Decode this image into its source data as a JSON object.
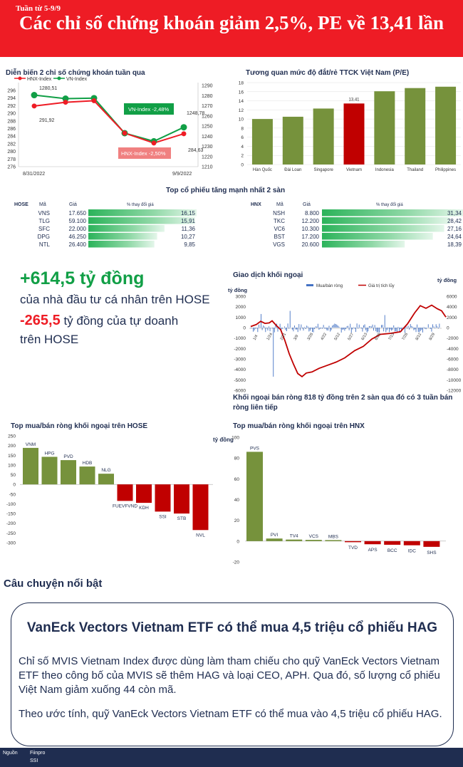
{
  "header": {
    "week": "Tuần từ 5-9/9",
    "title": "Các chỉ số chứng khoán giảm 2,5%, PE về 13,41 lần"
  },
  "colors": {
    "red": "#ee1c25",
    "green": "#119f46",
    "olive": "#76923c",
    "navy": "#1f2d50"
  },
  "index_chart": {
    "title": "Diễn biến 2 chỉ số chứng khoán tuần qua",
    "legend_hnx": "HNX-Index",
    "legend_vn": "VN-Index",
    "left_ticks": [
      "296",
      "294",
      "292",
      "290",
      "288",
      "286",
      "284",
      "282",
      "280",
      "278",
      "276"
    ],
    "right_ticks": [
      "1290",
      "1280",
      "1270",
      "1260",
      "1250",
      "1240",
      "1230",
      "1220",
      "1210"
    ],
    "date_start": "8/31/2022",
    "date_end": "9/9/2022",
    "hnx_values": [
      291.92,
      292.9,
      293.3,
      284.8,
      282.2,
      284.63
    ],
    "vn_values": [
      1280.51,
      1277.0,
      1277.5,
      1243.0,
      1235.0,
      1248.78
    ],
    "label_hnx_start": "291,92",
    "label_vn_start": "1280,51",
    "label_vn_end": "1248,78",
    "label_hnx_end": "284,63",
    "box_vn": "VN-Index -2,48%",
    "box_hnx": "HNX-Index -2,50%"
  },
  "pe_chart": {
    "title": "Tương quan mức độ đắt/rẻ TTCK Việt Nam (P/E)",
    "categories": [
      "Hàn Quốc",
      "Đài Loan",
      "Singapore",
      "Vietnam",
      "Indonesia",
      "Thailand",
      "Philippines"
    ],
    "values": [
      10.0,
      10.5,
      12.3,
      13.41,
      16.1,
      16.8,
      17.1
    ],
    "ylim": [
      0,
      18
    ],
    "ticks": [
      "18",
      "16",
      "14",
      "12",
      "10",
      "8",
      "6",
      "4",
      "2",
      "0"
    ],
    "vn_label": "13,41"
  },
  "top_gainers": {
    "title": "Top cổ phiếu tăng mạnh nhất 2 sàn",
    "col_code": "Mã",
    "col_price": "Giá",
    "col_change": "% thay đổi giá",
    "hose": {
      "exchange": "HOSE",
      "rows": [
        {
          "code": "VNS",
          "price": "17.650",
          "change": "16,15",
          "value": 16.15
        },
        {
          "code": "TLG",
          "price": "59.100",
          "change": "15,91",
          "value": 15.91
        },
        {
          "code": "SFC",
          "price": "22.000",
          "change": "11,36",
          "value": 11.36
        },
        {
          "code": "DPG",
          "price": "46.250",
          "change": "10,27",
          "value": 10.27
        },
        {
          "code": "NTL",
          "price": "26.400",
          "change": "9,85",
          "value": 9.85
        }
      ]
    },
    "hnx": {
      "exchange": "HNX",
      "rows": [
        {
          "code": "NSH",
          "price": "8.800",
          "change": "31,34",
          "value": 31.34
        },
        {
          "code": "TKC",
          "price": "12.200",
          "change": "28,42",
          "value": 28.42
        },
        {
          "code": "VC6",
          "price": "10.300",
          "change": "27,16",
          "value": 27.16
        },
        {
          "code": "BST",
          "price": "17.200",
          "change": "24,64",
          "value": 24.64
        },
        {
          "code": "VGS",
          "price": "20.600",
          "change": "18,39",
          "value": 18.39
        }
      ]
    }
  },
  "highlights": {
    "big1": "+614,5 tỷ đồng",
    "desc1": "của nhà đầu tư cá nhân trên HOSE",
    "big2": "-265,5",
    "desc2a": " tỷ đồng của tự doanh",
    "desc2b": "trên HOSE"
  },
  "foreign_chart": {
    "title": "Giao dịch khối ngoại",
    "unit_left": "tỷ đồng",
    "unit_right": "tỷ đồng",
    "legend_bar": "Mua/bán ròng",
    "legend_line": "Giá trị tích lũy",
    "left_ticks": [
      "3000",
      "2000",
      "1000",
      "0",
      "-1000",
      "-2000",
      "-3000",
      "-4000",
      "-5000",
      "-6000"
    ],
    "right_ticks": [
      "6000",
      "4000",
      "2000",
      "0",
      "-2000",
      "-4000",
      "-6000",
      "-8000",
      "-10000",
      "-12000"
    ],
    "date_labels": [
      "1/4",
      "1/24",
      "2/21",
      "3/9",
      "3/28",
      "4/22",
      "5/12",
      "5/27",
      "6/13",
      "6/28",
      "7/13",
      "7/28",
      "8/12",
      "8/29"
    ],
    "caption": "Khối ngoại bán ròng 818 tỷ đồng trên 2 sàn qua đó có 3 tuần bán ròng liên tiếp"
  },
  "hose_foreign": {
    "title": "Top mua/bán ròng khối ngoại trên HOSE",
    "unit": "tỷ đồng",
    "categories": [
      "VNM",
      "HPG",
      "PVD",
      "HDB",
      "NLG",
      "FUEVFVND",
      "KDH",
      "SSI",
      "STB",
      "NVL"
    ],
    "values": [
      188,
      142,
      125,
      92,
      55,
      -85,
      -95,
      -140,
      -150,
      -235
    ],
    "ticks": [
      "250",
      "200",
      "150",
      "100",
      "50",
      "0",
      "-50",
      "-100",
      "-150",
      "-200",
      "-250",
      "-300"
    ],
    "ylim": [
      -300,
      250
    ]
  },
  "hnx_foreign": {
    "title": "Top mua/bán ròng khối ngoại trên HNX",
    "categories": [
      "PVS",
      "PVI",
      "TV4",
      "VCS",
      "MBS",
      "TVD",
      "APS",
      "BCC",
      "IDC",
      "SHS"
    ],
    "values": [
      86,
      2.5,
      1.5,
      1.2,
      1.0,
      -0.8,
      -3.0,
      -3.5,
      -4.0,
      -5.5
    ],
    "ticks": [
      "100",
      "80",
      "60",
      "40",
      "20",
      "0",
      "-20"
    ],
    "ylim": [
      -20,
      100
    ]
  },
  "story": {
    "heading": "Câu chuyện nổi bật",
    "title": "VanEck Vectors Vietnam ETF có thể mua 4,5 triệu cổ phiếu HAG",
    "p1": "Chỉ số MVIS Vietnam Index được dùng làm tham chiếu cho quỹ VanEck Vectors Vietnam ETF theo công bố của MVIS sẽ thêm HAG và loại CEO, APH. Qua đó, số lượng cổ phiếu Việt Nam giảm xuống 44 còn mã.",
    "p2": "Theo ước tính, quỹ VanEck Vectors Vietnam ETF có thể mua vào 4,5 triệu cổ phiếu HAG."
  },
  "footer": {
    "source_label": "Nguồn",
    "source1": "Fiinpro",
    "source2": "SSI"
  }
}
